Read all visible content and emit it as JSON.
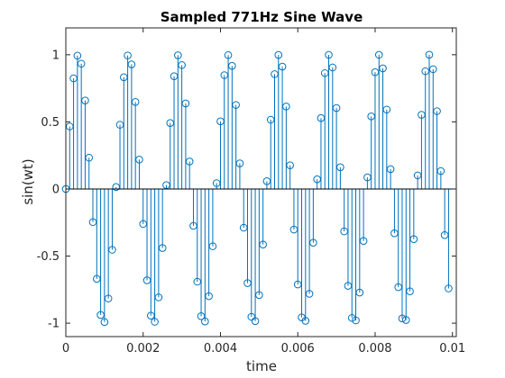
{
  "chart_data": {
    "type": "stem",
    "title": "Sampled 771Hz Sine Wave",
    "xlabel": "time",
    "ylabel": "sin(wt)",
    "frequency_hz": 771,
    "sample_interval": 0.0001,
    "num_samples": 100,
    "function": "sin(2*pi*771*t)",
    "xlim": [
      0,
      0.0101
    ],
    "ylim": [
      -1.1,
      1.2
    ],
    "xticks": [
      0,
      0.002,
      0.004,
      0.006,
      0.008,
      0.01
    ],
    "xtick_labels": [
      "0",
      "0.002",
      "0.004",
      "0.006",
      "0.008",
      "0.01"
    ],
    "yticks": [
      -1,
      -0.5,
      0,
      0.5,
      1
    ],
    "ytick_labels": [
      "-1",
      "-0.5",
      "0",
      "0.5",
      "1"
    ],
    "color": "#0072BD",
    "box": true,
    "grid": false
  }
}
